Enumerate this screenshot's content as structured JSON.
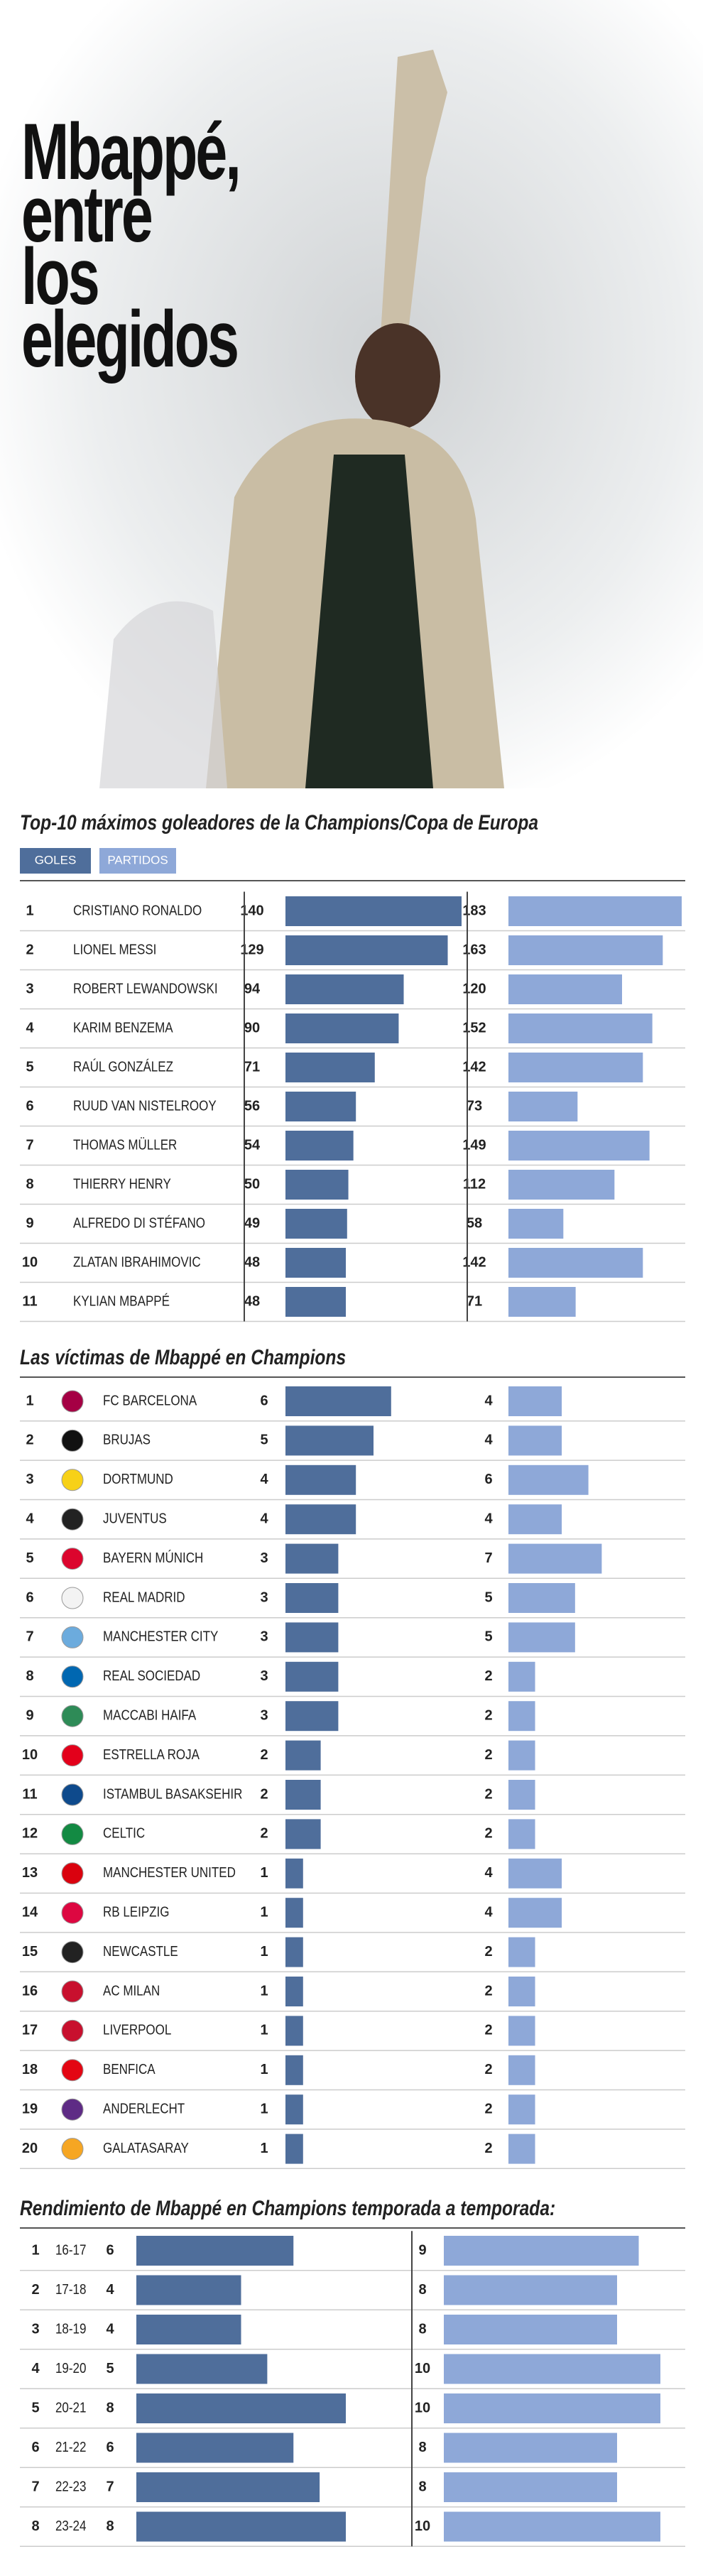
{
  "header": {
    "title": "Mbappé, entre los elegidos"
  },
  "chart_data": [
    {
      "type": "bar",
      "title": "Top-10 máximos goleadores de la Champions/Copa de Europa",
      "ranks": [
        1,
        2,
        3,
        4,
        5,
        6,
        7,
        8,
        9,
        10,
        11
      ],
      "categories": [
        "CRISTIANO RONALDO",
        "LIONEL MESSI",
        "ROBERT LEWANDOWSKI",
        "KARIM BENZEMA",
        "RAÚL GONZÁLEZ",
        "RUUD VAN NISTELROOY",
        "THOMAS MÜLLER",
        "THIERRY HENRY",
        "ALFREDO DI STÉFANO",
        "ZLATAN IBRAHIMOVIC",
        "KYLIAN MBAPPÉ"
      ],
      "series": [
        {
          "name": "GOLES",
          "color": "#4f6e9b",
          "xlim": [
            0,
            140
          ],
          "values": [
            140,
            129,
            94,
            90,
            71,
            56,
            54,
            50,
            49,
            48,
            48
          ]
        },
        {
          "name": "PARTIDOS",
          "color": "#8ea8d8",
          "xlim": [
            0,
            183
          ],
          "values": [
            183,
            163,
            120,
            152,
            142,
            73,
            149,
            112,
            58,
            142,
            71
          ]
        }
      ]
    },
    {
      "type": "bar",
      "title": "Las víctimas de Mbappé en Champions",
      "ranks": [
        1,
        2,
        3,
        4,
        5,
        6,
        7,
        8,
        9,
        10,
        11,
        12,
        13,
        14,
        15,
        16,
        17,
        18,
        19,
        20
      ],
      "categories": [
        "FC BARCELONA",
        "BRUJAS",
        "DORTMUND",
        "JUVENTUS",
        "BAYERN MÚNICH",
        "REAL MADRID",
        "MANCHESTER CITY",
        "REAL SOCIEDAD",
        "MACCABI HAIFA",
        "ESTRELLA ROJA",
        "ISTAMBUL BASAKSEHIR",
        "CELTIC",
        "MANCHESTER UNITED",
        "RB LEIPZIG",
        "NEWCASTLE",
        "AC MILAN",
        "LIVERPOOL",
        "BENFICA",
        "ANDERLECHT",
        "GALATASARAY"
      ],
      "series": [
        {
          "color": "#4f6e9b",
          "xlim": [
            0,
            10
          ],
          "values": [
            6,
            5,
            4,
            4,
            3,
            3,
            3,
            3,
            3,
            2,
            2,
            2,
            1,
            1,
            1,
            1,
            1,
            1,
            1,
            1
          ]
        },
        {
          "color": "#8ea8d8",
          "xlim": [
            0,
            13
          ],
          "values": [
            4,
            4,
            6,
            4,
            7,
            5,
            5,
            2,
            2,
            2,
            2,
            2,
            4,
            4,
            2,
            2,
            2,
            2,
            2,
            2
          ]
        }
      ]
    },
    {
      "type": "bar",
      "title": "Rendimiento de Mbappé en Champions temporada a temporada:",
      "ranks": [
        1,
        2,
        3,
        4,
        5,
        6,
        7,
        8
      ],
      "categories": [
        "16-17",
        "17-18",
        "18-19",
        "19-20",
        "20-21",
        "21-22",
        "22-23",
        "23-24"
      ],
      "series": [
        {
          "color": "#4f6e9b",
          "xlim": [
            0,
            8
          ],
          "values": [
            6,
            4,
            4,
            5,
            8,
            6,
            7,
            8
          ]
        },
        {
          "color": "#8ea8d8",
          "xlim": [
            0,
            10
          ],
          "values": [
            9,
            8,
            8,
            10,
            10,
            8,
            8,
            10
          ]
        }
      ]
    }
  ]
}
